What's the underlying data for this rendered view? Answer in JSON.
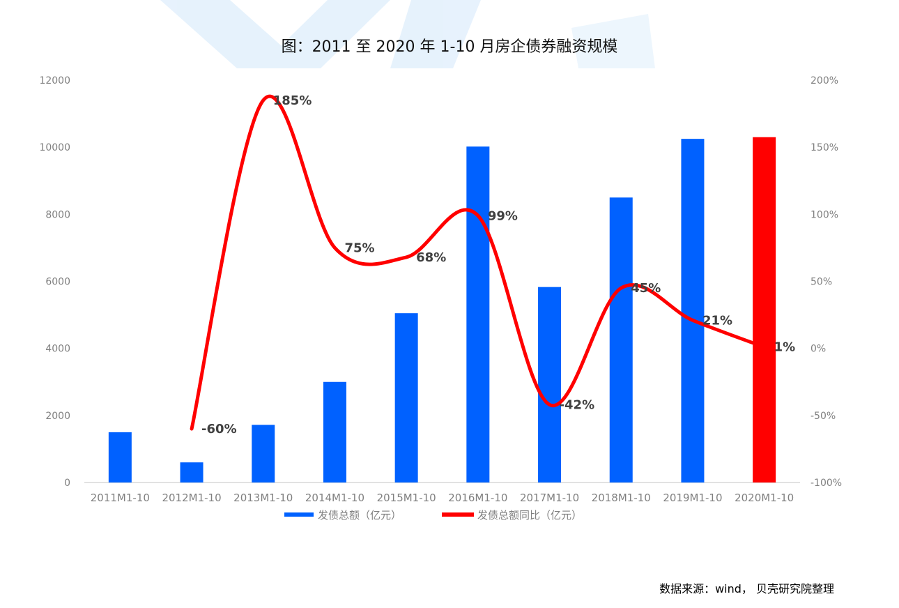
{
  "chart_data": {
    "type": "bar",
    "title": "图：2011 至 2020 年 1-10 月房企债券融资规模",
    "categories": [
      "2011M1-10",
      "2012M1-10",
      "2013M1-10",
      "2014M1-10",
      "2015M1-10",
      "2016M1-10",
      "2017M1-10",
      "2018M1-10",
      "2019M1-10",
      "2020M1-10"
    ],
    "series": [
      {
        "name": "发债总额（亿元）",
        "type": "bar",
        "axis": "left",
        "values": [
          1500,
          600,
          1720,
          3000,
          5050,
          10020,
          5830,
          8500,
          10250,
          10300
        ],
        "color": "#0061ff",
        "highlight_index": 9,
        "highlight_color": "#ff0000"
      },
      {
        "name": "发债总额同比（亿元）",
        "type": "line",
        "axis": "right",
        "smooth": true,
        "values": [
          null,
          -60,
          185,
          75,
          68,
          99,
          -42,
          45,
          21,
          1
        ],
        "labels": [
          "",
          "-60%",
          "185%",
          "75%",
          "68%",
          "99%",
          "-42%",
          "45%",
          "21%",
          "1%"
        ],
        "color": "#ff0000"
      }
    ],
    "y_left": {
      "min": 0,
      "max": 12000,
      "ticks": [
        "0",
        "2000",
        "4000",
        "6000",
        "8000",
        "10000",
        "12000"
      ]
    },
    "y_right": {
      "min": -100,
      "max": 200,
      "ticks": [
        "-100%",
        "-50%",
        "0%",
        "50%",
        "100%",
        "150%",
        "200%"
      ]
    },
    "grid": false,
    "legend_position": "bottom"
  },
  "source_note": "数据来源：wind，  贝壳研究院整理",
  "colors": {
    "bar": "#0061ff",
    "bar_highlight": "#ff0000",
    "line": "#ff0000",
    "axis": "#d9d9d9",
    "tick_text": "#808080",
    "label_text": "#404040"
  }
}
